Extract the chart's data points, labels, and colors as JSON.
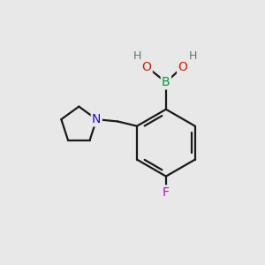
{
  "bg": "#e8e8e8",
  "bond_color": "#1a1a1a",
  "bond_lw": 1.6,
  "atom_colors": {
    "B": "#009933",
    "O": "#cc2200",
    "H": "#557777",
    "N": "#2200ee",
    "F": "#cc00bb",
    "C": "#1a1a1a"
  },
  "font_size_atom": 10,
  "font_size_h": 9
}
